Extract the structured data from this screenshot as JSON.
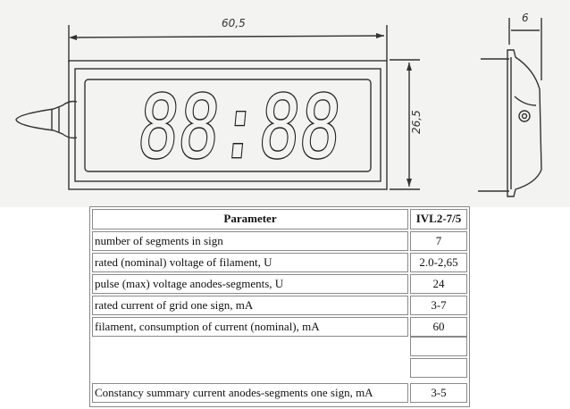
{
  "drawing": {
    "display_digits": "88:88",
    "dimensions": {
      "width": "60,5",
      "height": "26,5",
      "depth": "6"
    }
  },
  "table": {
    "headers": [
      "Parameter",
      "IVL2-7/5"
    ],
    "rows": [
      {
        "parameter": "number of segments in sign",
        "value": "7"
      },
      {
        "parameter": "rated (nominal) voltage of filament, U",
        "value": "2.0-2,65"
      },
      {
        "parameter": "pulse (max) voltage anodes-segments, U",
        "value": "24"
      },
      {
        "parameter": "rated current of grid one sign, mA",
        "value": "3-7"
      },
      {
        "parameter": "filament, consumption of current (nominal), mA",
        "value": "60"
      },
      {
        "parameter": "",
        "value": ""
      },
      {
        "parameter": "",
        "value": ""
      },
      {
        "parameter": "Constancy summary current anodes-segments one sign, mA",
        "value": "3-5"
      }
    ]
  }
}
